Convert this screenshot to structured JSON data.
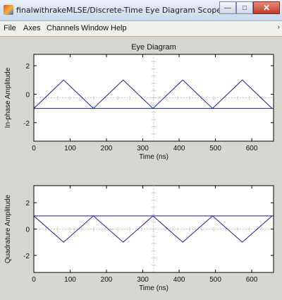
{
  "window": {
    "title": "finalwithrakeMLSE/Discrete-Time Eye Diagram Scope"
  },
  "menu": [
    "File",
    "Axes",
    "Channels",
    "Window",
    "Help"
  ],
  "chart_data": [
    {
      "type": "line",
      "title": "Eye Diagram",
      "xlabel": "Time (ns)",
      "ylabel": "In-phase Amplitude",
      "xlim": [
        0,
        660
      ],
      "ylim": [
        -3.3,
        2.8
      ],
      "xticks": [
        0,
        100,
        200,
        300,
        400,
        500,
        600
      ],
      "yticks": [
        -2,
        0,
        2
      ],
      "line_color": "#1a1a8c",
      "series": [
        {
          "x": [
            0,
            82,
            164,
            246,
            328,
            410,
            492,
            574,
            656
          ],
          "y": [
            -1,
            1,
            -1,
            1,
            -1,
            1,
            -1,
            1,
            -1
          ]
        },
        {
          "x": [
            0,
            660
          ],
          "y": [
            -1,
            -1
          ]
        }
      ]
    },
    {
      "type": "line",
      "title": "",
      "xlabel": "Time (ns)",
      "ylabel": "Quadrature Amplitude",
      "xlim": [
        0,
        660
      ],
      "ylim": [
        -3.3,
        3.3
      ],
      "xticks": [
        0,
        100,
        200,
        300,
        400,
        500,
        600
      ],
      "yticks": [
        -2,
        0,
        2
      ],
      "line_color": "#1a1a8c",
      "series": [
        {
          "x": [
            0,
            82,
            164,
            246,
            328,
            410,
            492,
            574,
            656
          ],
          "y": [
            1,
            -1,
            1,
            -1,
            1,
            -1,
            1,
            -1,
            1
          ]
        },
        {
          "x": [
            0,
            660
          ],
          "y": [
            1,
            1
          ]
        }
      ]
    }
  ]
}
